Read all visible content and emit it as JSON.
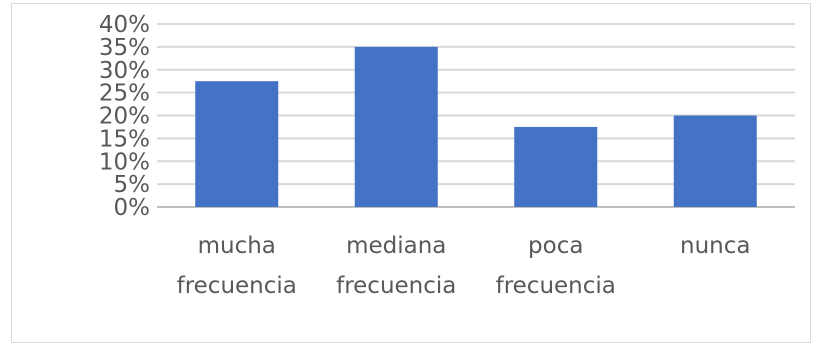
{
  "chart_data": {
    "type": "bar",
    "categories": [
      [
        "mucha",
        "frecuencia"
      ],
      [
        "mediana",
        "frecuencia"
      ],
      [
        "poca",
        "frecuencia"
      ],
      [
        "nunca"
      ]
    ],
    "values": [
      27.5,
      35,
      17.5,
      20
    ],
    "y_ticks": [
      "0%",
      "5%",
      "10%",
      "15%",
      "20%",
      "25%",
      "30%",
      "35%",
      "40%"
    ],
    "ylim": [
      0,
      40
    ],
    "grid": true,
    "bar_color": "#4472c4",
    "grid_color": "#d9d9d9",
    "axis_color": "#bfbfbf",
    "text_color": "#595959"
  }
}
